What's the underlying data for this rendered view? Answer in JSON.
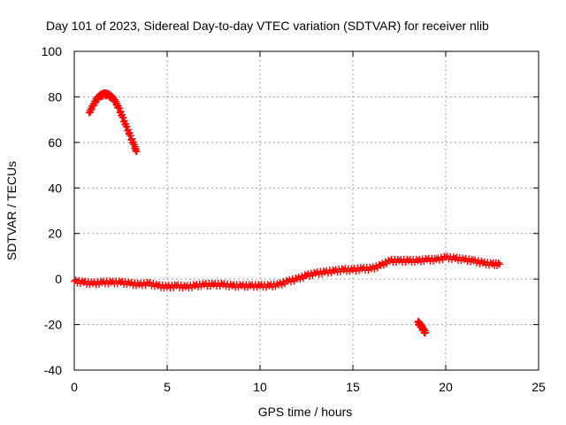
{
  "chart_data": {
    "type": "scatter",
    "title": "Day 101 of 2023, Sidereal Day-to-day VTEC variation (SDTVAR) for receiver nlib",
    "xlabel": "GPS time / hours",
    "ylabel": "SDTVAR / TECUs",
    "xlim": [
      0,
      25
    ],
    "ylim": [
      -40,
      100
    ],
    "x_ticks": [
      0,
      5,
      10,
      15,
      20,
      25
    ],
    "y_ticks": [
      -40,
      -20,
      0,
      20,
      40,
      60,
      80,
      100
    ],
    "x_tick_labels": [
      "0",
      "5",
      "10",
      "15",
      "20",
      "25"
    ],
    "y_tick_labels": [
      "-40",
      "-20",
      "0",
      "20",
      "40",
      "60",
      "80",
      "100"
    ],
    "grid": true,
    "marker": "plus",
    "color": "#ff0000",
    "series": [
      {
        "name": "arc-high-elevation",
        "points": [
          [
            0.8,
            73
          ],
          [
            1.0,
            76
          ],
          [
            1.2,
            79
          ],
          [
            1.4,
            80.5
          ],
          [
            1.6,
            81.2
          ],
          [
            1.8,
            81
          ],
          [
            2.0,
            80
          ],
          [
            2.2,
            78
          ],
          [
            2.4,
            75
          ],
          [
            2.6,
            71
          ],
          [
            2.8,
            67
          ],
          [
            3.0,
            63
          ],
          [
            3.2,
            59
          ],
          [
            3.35,
            56
          ]
        ]
      },
      {
        "name": "baseline",
        "points": [
          [
            0.0,
            -1
          ],
          [
            0.5,
            -1.5
          ],
          [
            1.0,
            -2
          ],
          [
            1.5,
            -1.5
          ],
          [
            2.0,
            -1.5
          ],
          [
            2.5,
            -1.5
          ],
          [
            3.0,
            -2
          ],
          [
            3.5,
            -2.5
          ],
          [
            4.0,
            -2
          ],
          [
            4.5,
            -3
          ],
          [
            5.0,
            -3.5
          ],
          [
            5.5,
            -3
          ],
          [
            6.0,
            -3.5
          ],
          [
            6.5,
            -3
          ],
          [
            7.0,
            -2.5
          ],
          [
            7.5,
            -2.5
          ],
          [
            8.0,
            -2.5
          ],
          [
            8.5,
            -3
          ],
          [
            9.0,
            -3
          ],
          [
            9.5,
            -3
          ],
          [
            10.0,
            -3
          ],
          [
            10.5,
            -3
          ],
          [
            11.0,
            -2.5
          ],
          [
            11.5,
            -1
          ],
          [
            12.0,
            0
          ],
          [
            12.5,
            1.5
          ],
          [
            13.0,
            2.5
          ],
          [
            13.5,
            3
          ],
          [
            14.0,
            3.5
          ],
          [
            14.5,
            4
          ],
          [
            15.0,
            4
          ],
          [
            15.5,
            4.5
          ],
          [
            16.0,
            4.5
          ],
          [
            16.5,
            6
          ],
          [
            17.0,
            8
          ],
          [
            17.5,
            8
          ],
          [
            18.0,
            8
          ],
          [
            18.5,
            8
          ],
          [
            19.0,
            8.5
          ],
          [
            19.5,
            8.5
          ],
          [
            20.0,
            9.5
          ],
          [
            20.5,
            9
          ],
          [
            21.0,
            8.5
          ],
          [
            21.5,
            8
          ],
          [
            22.0,
            7
          ],
          [
            22.5,
            6.5
          ],
          [
            22.9,
            6.5
          ]
        ]
      },
      {
        "name": "short-negative-arc",
        "points": [
          [
            18.5,
            -19
          ],
          [
            18.6,
            -20
          ],
          [
            18.7,
            -21
          ],
          [
            18.8,
            -22.5
          ],
          [
            18.9,
            -23.5
          ]
        ]
      }
    ]
  }
}
